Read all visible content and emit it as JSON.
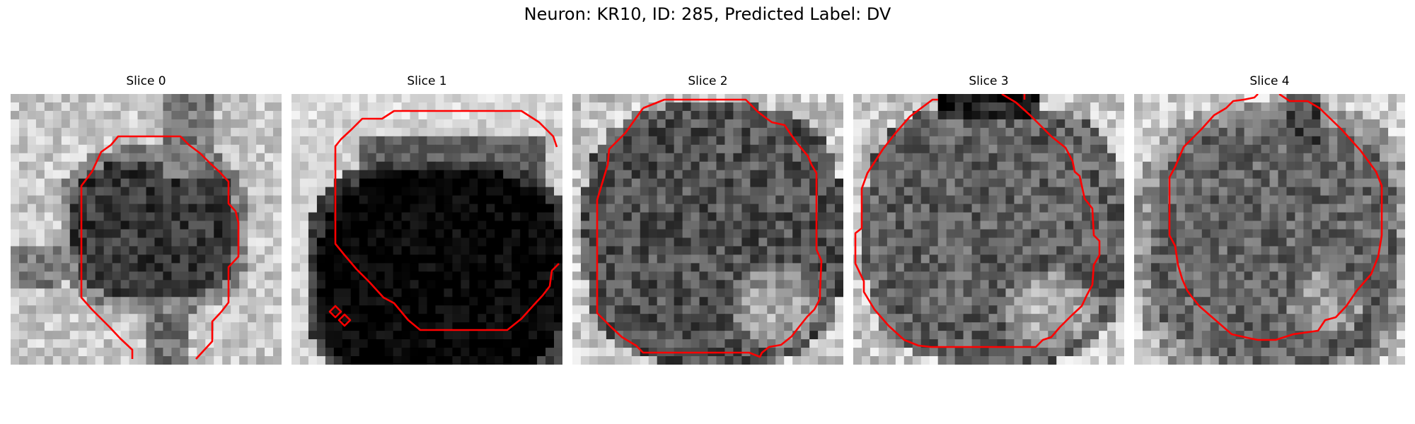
{
  "figure": {
    "title": "Neuron: KR10, ID: 285, Predicted Label: DV"
  },
  "panels": [
    {
      "title": "Slice 0"
    },
    {
      "title": "Slice 1"
    },
    {
      "title": "Slice 2"
    },
    {
      "title": "Slice 3"
    },
    {
      "title": "Slice 4"
    }
  ],
  "colors": {
    "contour": "#ff0000",
    "background": "#ffffff"
  }
}
